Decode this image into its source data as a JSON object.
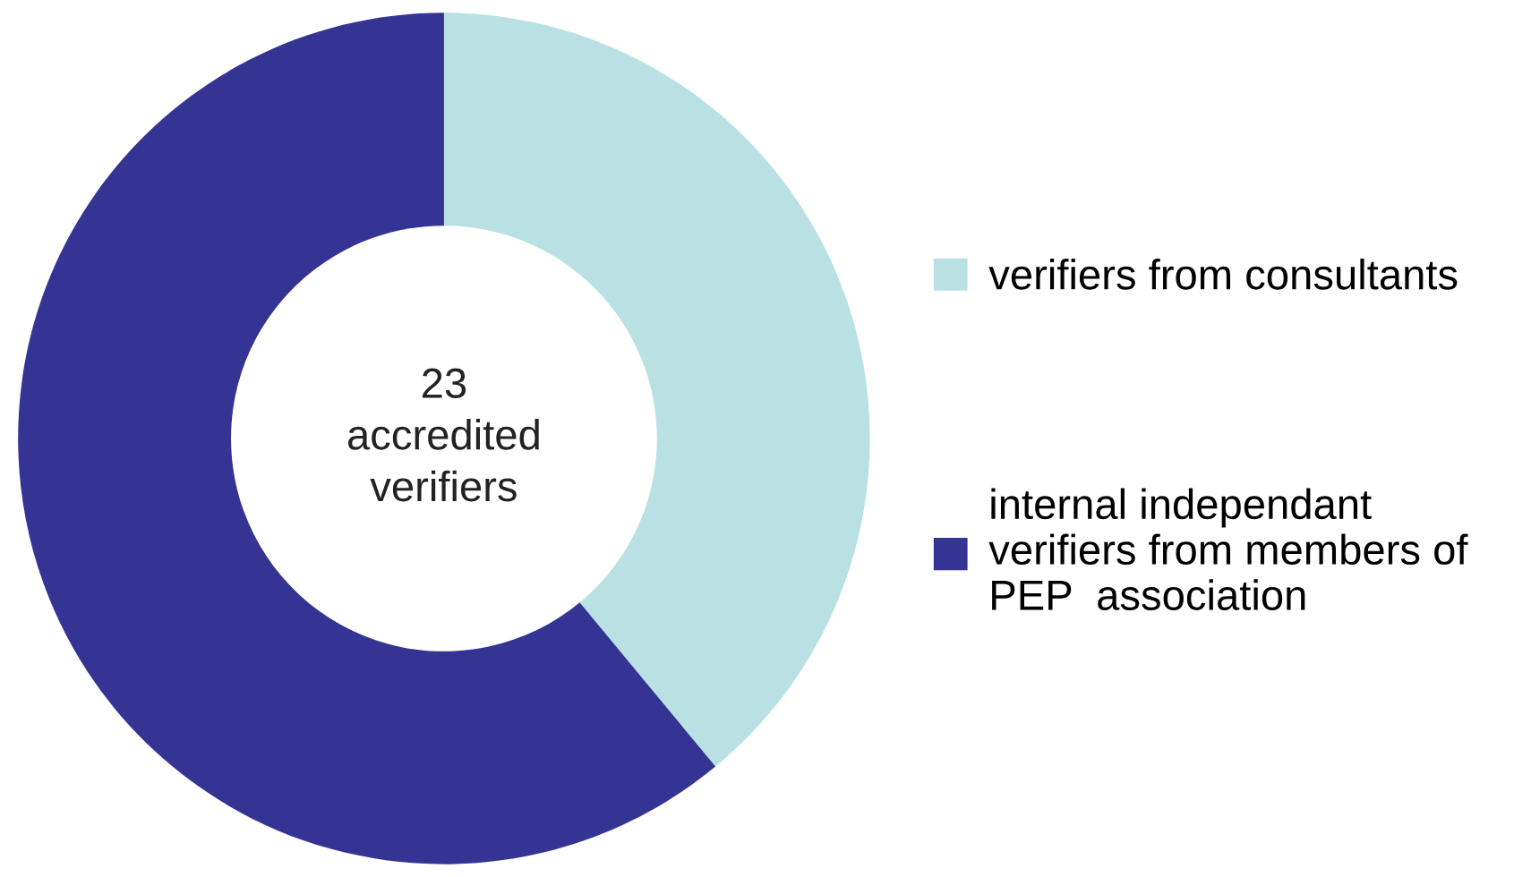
{
  "chart_data": {
    "type": "donut",
    "categories": [
      "verifiers from consultants",
      "internal independant\nverifiers from members of\nPEP  association"
    ],
    "values": [
      39,
      61
    ],
    "colors": [
      "#b9e1e4",
      "#353494"
    ],
    "annotations": [
      "23\naccredited\nverifiers"
    ],
    "legend": "right"
  }
}
